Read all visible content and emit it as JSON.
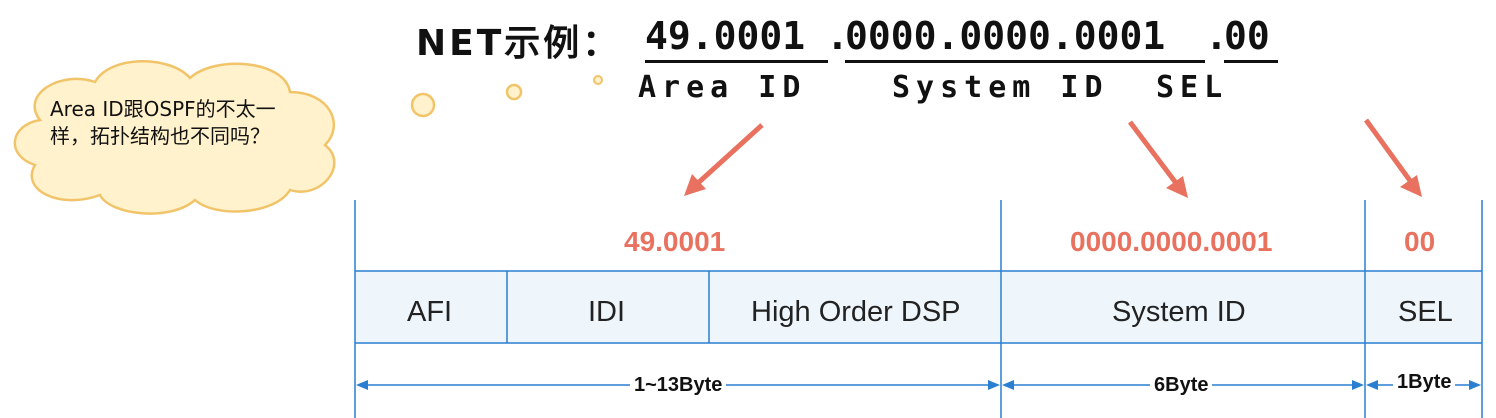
{
  "title": {
    "prefix": "NET示例：",
    "area_part": "49.0001",
    "system_part": "0000.0000.0001",
    "sel_part": "00",
    "separator": "."
  },
  "sublabels": {
    "area": "Area ID",
    "system": "System ID",
    "sel": "SEL"
  },
  "bubble": {
    "text": "Area ID跟OSPF的不太一样，拓扑结构也不同吗？"
  },
  "table": {
    "values": {
      "area": "49.0001",
      "system": "0000.0000.0001",
      "sel": "00"
    },
    "cells": {
      "afi": "AFI",
      "idi": "IDI",
      "dsp": "High Order DSP",
      "system": "System ID",
      "sel": "SEL"
    },
    "bytes": {
      "area": "1~13Byte",
      "system": "6Byte",
      "sel": "1Byte"
    }
  },
  "colors": {
    "accent_red": "#e8725f",
    "line_blue": "#2a7fd0",
    "cell_fill": "#eef6fc",
    "cloud_fill": "#fff2cc",
    "cloud_stroke": "#f2c46a"
  }
}
